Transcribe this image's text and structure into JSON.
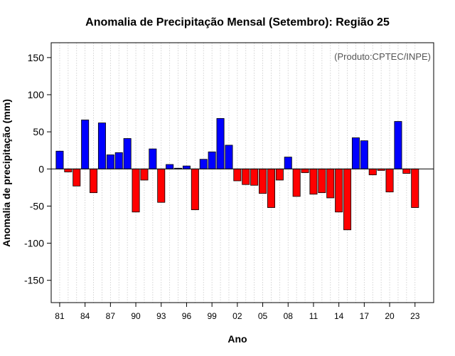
{
  "chart_data": {
    "type": "bar",
    "title": "Anomalia de Precipitação Mensal (Setembro): Região 25",
    "xlabel": "Ano",
    "ylabel": "Anomalia de precipitação (mm)",
    "credit": "(Produto:CPTEC/INPE)",
    "ylim": [
      -180,
      170
    ],
    "yticks": [
      -150,
      -100,
      -50,
      0,
      50,
      100,
      150
    ],
    "ytick_labels": [
      "-150",
      "-100",
      "-50",
      "0",
      "50",
      "100",
      "150"
    ],
    "x_tick_years": [
      1981,
      1984,
      1987,
      1990,
      1993,
      1996,
      1999,
      2002,
      2005,
      2008,
      2011,
      2014,
      2017,
      2020,
      2023
    ],
    "x_tick_labels": [
      "81",
      "84",
      "87",
      "90",
      "93",
      "96",
      "99",
      "02",
      "05",
      "08",
      "11",
      "14",
      "17",
      "20",
      "23"
    ],
    "years": [
      1981,
      1982,
      1983,
      1984,
      1985,
      1986,
      1987,
      1988,
      1989,
      1990,
      1991,
      1992,
      1993,
      1994,
      1995,
      1996,
      1997,
      1998,
      1999,
      2000,
      2001,
      2002,
      2003,
      2004,
      2005,
      2006,
      2007,
      2008,
      2009,
      2010,
      2011,
      2012,
      2013,
      2014,
      2015,
      2016,
      2017,
      2018,
      2019,
      2020,
      2021,
      2022,
      2023
    ],
    "values": [
      24,
      -4,
      -23,
      66,
      -32,
      62,
      19,
      22,
      41,
      -58,
      -15,
      27,
      -45,
      6,
      1,
      4,
      -55,
      13,
      23,
      68,
      32,
      -16,
      -21,
      -22,
      -33,
      -52,
      -15,
      16,
      -37,
      -5,
      -34,
      -32,
      -39,
      -58,
      -82,
      42,
      38,
      -8,
      -2,
      -31,
      64,
      -6,
      -52
    ],
    "colors": {
      "positive": "#0000ff",
      "negative": "#ff0000",
      "grid": "#c8c8c8",
      "zero_line": "#000000"
    }
  }
}
